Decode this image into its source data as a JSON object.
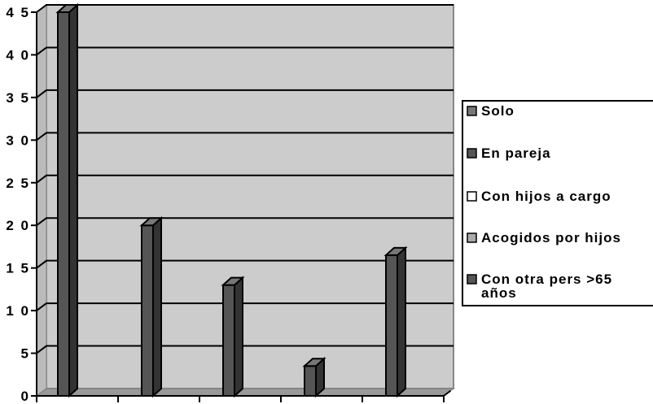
{
  "chart_data": {
    "type": "bar",
    "bar_style": "3d",
    "grid": true,
    "legend_position": "right",
    "ylim": [
      0,
      45
    ],
    "y_ticks": [
      "0",
      "5",
      "1 0",
      "1 5",
      "2 0",
      "2 5",
      "3 0",
      "3 5",
      "4 0",
      "4 5"
    ],
    "series": [
      {
        "name": "Solo",
        "value": 45,
        "color": "#555555"
      },
      {
        "name": "En pareja",
        "value": 20,
        "color": "#555555"
      },
      {
        "name": "Con hijos a cargo",
        "value": 13,
        "color": "#555555"
      },
      {
        "name": "Acogidos por hijos",
        "value": 3.5,
        "color": "#555555"
      },
      {
        "name": "Con otra pers >65 años",
        "value": 16.5,
        "color": "#555555"
      }
    ],
    "legend_swatch_colors": [
      "#777777",
      "#555555",
      "#ffffff",
      "#aaaaaa",
      "#555555"
    ],
    "colors": {
      "plot_back_wall": "#cccccc",
      "plot_floor": "#999999",
      "gridline": "#000000",
      "bar_front": "#555555",
      "bar_side": "#333333",
      "bar_top": "#777777"
    }
  }
}
